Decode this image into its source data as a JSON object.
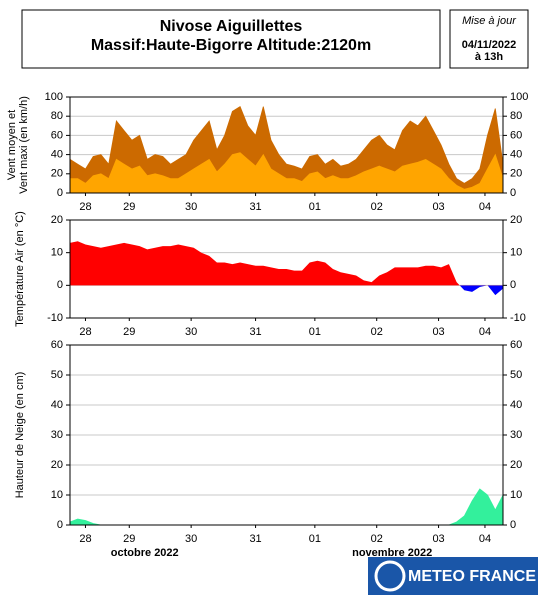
{
  "header": {
    "title": [
      "Nivose Aiguillettes",
      "Massif:Haute-Bigorre Altitude:2120m"
    ],
    "update": [
      "Mise à jour",
      "04/11/2022",
      "à 13h"
    ]
  },
  "logo": "METEO FRANCE",
  "chart_data": [
    {
      "type": "area",
      "ylabel": [
        "Vent moyen et",
        "Vent maxi (en km/h)"
      ],
      "x": [
        0,
        3,
        6,
        9,
        12,
        15,
        18,
        21,
        24,
        27,
        30,
        33,
        36,
        39,
        42,
        45,
        48,
        51,
        54,
        57,
        60,
        63,
        66,
        69,
        72,
        75,
        78,
        81,
        84,
        87,
        90,
        93,
        96,
        99,
        102,
        105,
        108,
        111,
        114,
        117,
        120,
        123,
        126,
        129,
        132,
        135,
        138,
        141,
        144,
        147,
        150,
        153,
        156,
        159,
        162,
        165,
        168
      ],
      "xlim": [
        0,
        168
      ],
      "xticks": [
        {
          "value": 6,
          "label": "28"
        },
        {
          "value": 23,
          "label": "29"
        },
        {
          "value": 47,
          "label": "30"
        },
        {
          "value": 72,
          "label": "31"
        },
        {
          "value": 95,
          "label": "01"
        },
        {
          "value": 119,
          "label": "02"
        },
        {
          "value": 143,
          "label": "03"
        },
        {
          "value": 161,
          "label": "04"
        }
      ],
      "ylim": [
        0,
        100
      ],
      "yticks": [
        0,
        20,
        40,
        60,
        80,
        100
      ],
      "grid": true,
      "series": [
        {
          "color": "#cc6a00",
          "values": [
            35,
            30,
            25,
            38,
            40,
            30,
            75,
            65,
            55,
            60,
            35,
            40,
            38,
            30,
            35,
            40,
            55,
            65,
            75,
            45,
            60,
            85,
            90,
            70,
            60,
            90,
            55,
            40,
            30,
            28,
            25,
            38,
            40,
            30,
            35,
            28,
            30,
            35,
            45,
            55,
            60,
            50,
            45,
            65,
            75,
            70,
            80,
            65,
            50,
            30,
            15,
            10,
            15,
            25,
            60,
            88,
            30
          ]
        },
        {
          "color": "#ffa500",
          "values": [
            15,
            15,
            10,
            18,
            20,
            15,
            35,
            30,
            25,
            28,
            18,
            20,
            18,
            15,
            15,
            20,
            25,
            30,
            35,
            22,
            30,
            40,
            42,
            35,
            28,
            40,
            25,
            20,
            15,
            15,
            12,
            20,
            22,
            15,
            18,
            15,
            15,
            18,
            22,
            25,
            28,
            25,
            22,
            28,
            30,
            32,
            35,
            30,
            25,
            15,
            8,
            4,
            6,
            10,
            25,
            40,
            15
          ]
        }
      ]
    },
    {
      "type": "signed_area",
      "ylabel": "Température Air (en °C)",
      "x": [
        0,
        3,
        6,
        9,
        12,
        15,
        18,
        21,
        24,
        27,
        30,
        33,
        36,
        39,
        42,
        45,
        48,
        51,
        54,
        57,
        60,
        63,
        66,
        69,
        72,
        75,
        78,
        81,
        84,
        87,
        90,
        93,
        96,
        99,
        102,
        105,
        108,
        111,
        114,
        117,
        120,
        123,
        126,
        129,
        132,
        135,
        138,
        141,
        144,
        147,
        150,
        153,
        156,
        159,
        162,
        165,
        168
      ],
      "xlim": [
        0,
        168
      ],
      "xticks": [
        {
          "value": 6,
          "label": "28"
        },
        {
          "value": 23,
          "label": "29"
        },
        {
          "value": 47,
          "label": "30"
        },
        {
          "value": 72,
          "label": "31"
        },
        {
          "value": 95,
          "label": "01"
        },
        {
          "value": 119,
          "label": "02"
        },
        {
          "value": 143,
          "label": "03"
        },
        {
          "value": 161,
          "label": "04"
        }
      ],
      "ylim": [
        -10,
        20
      ],
      "yticks": [
        -10,
        0,
        10,
        20
      ],
      "grid": true,
      "positive_color": "#ff0000",
      "negative_color": "#0000ff",
      "values": [
        13,
        13.5,
        12.5,
        12,
        11.5,
        12,
        12.5,
        13,
        12.5,
        12,
        11,
        11.5,
        12,
        12,
        12.5,
        12,
        11.5,
        10,
        9,
        7,
        7,
        6.5,
        7,
        6.5,
        6,
        6,
        5.5,
        5,
        5,
        4.5,
        4.5,
        7,
        7.5,
        7,
        5,
        4,
        3.5,
        3,
        1.5,
        1,
        3,
        4,
        5.5,
        5.5,
        5.5,
        5.5,
        6,
        6,
        5.5,
        6.5,
        1,
        -1.5,
        -2,
        -0.5,
        0,
        -3,
        -1
      ]
    },
    {
      "type": "area",
      "ylabel": "Hauteur de Neige (en cm)",
      "x": [
        0,
        3,
        6,
        9,
        12,
        15,
        18,
        21,
        24,
        27,
        30,
        33,
        36,
        39,
        42,
        45,
        48,
        51,
        54,
        57,
        60,
        63,
        66,
        69,
        72,
        75,
        78,
        81,
        84,
        87,
        90,
        93,
        96,
        99,
        102,
        105,
        108,
        111,
        114,
        117,
        120,
        123,
        126,
        129,
        132,
        135,
        138,
        141,
        144,
        147,
        150,
        153,
        156,
        159,
        162,
        165,
        168
      ],
      "xlim": [
        0,
        168
      ],
      "xticks": [
        {
          "value": 6,
          "label": "28"
        },
        {
          "value": 23,
          "label": "29"
        },
        {
          "value": 47,
          "label": "30"
        },
        {
          "value": 72,
          "label": "31"
        },
        {
          "value": 95,
          "label": "01"
        },
        {
          "value": 119,
          "label": "02"
        },
        {
          "value": 143,
          "label": "03"
        },
        {
          "value": 161,
          "label": "04"
        }
      ],
      "month_labels": [
        {
          "value": 29,
          "label": "octobre 2022"
        },
        {
          "value": 125,
          "label": "novembre 2022"
        }
      ],
      "ylim": [
        0,
        60
      ],
      "yticks": [
        0,
        10,
        20,
        30,
        40,
        50,
        60
      ],
      "grid": true,
      "series": [
        {
          "color": "#33f09c",
          "values": [
            1,
            2,
            1.5,
            0.5,
            0,
            0,
            0,
            0,
            0,
            0,
            0,
            0,
            0,
            0,
            0,
            0,
            0,
            0,
            0,
            0,
            0,
            0,
            0,
            0,
            0,
            0,
            0,
            0,
            0,
            0,
            0,
            0,
            0,
            0,
            0,
            0,
            0,
            0,
            0,
            0,
            0,
            0,
            0,
            0,
            0,
            0,
            0,
            0,
            0,
            0,
            1,
            3,
            8,
            12,
            10,
            5,
            10
          ]
        }
      ]
    }
  ]
}
